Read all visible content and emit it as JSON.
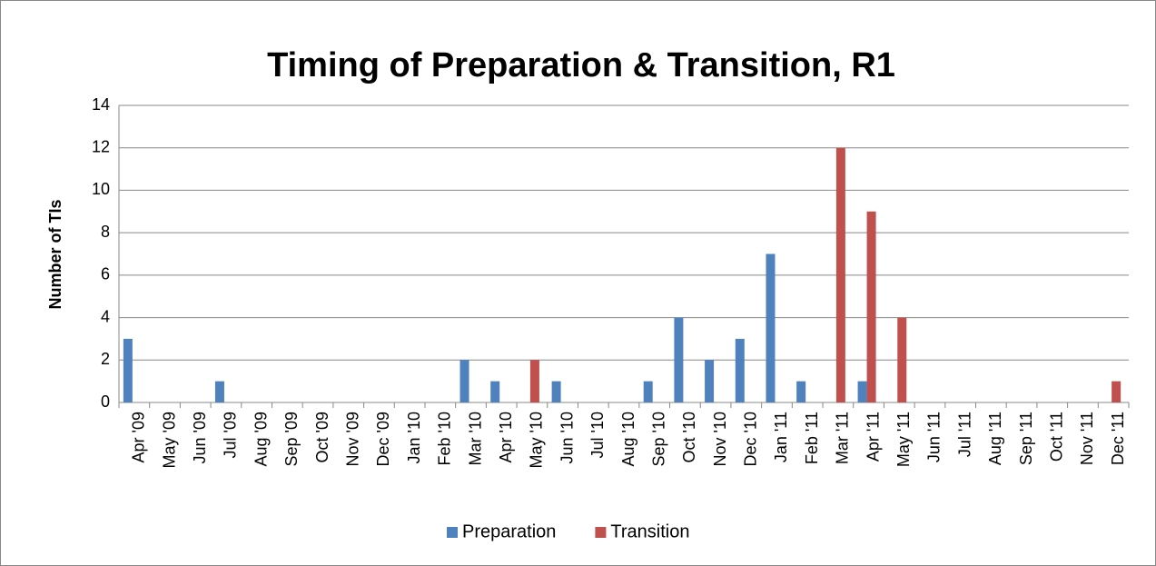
{
  "chart_data": {
    "type": "bar",
    "title": "Timing of Preparation & Transition, R1",
    "y_label": "Number of TIs",
    "categories": [
      "Apr '09",
      "May '09",
      "Jun '09",
      "Jul '09",
      "Aug '09",
      "Sep '09",
      "Oct '09",
      "Nov '09",
      "Dec '09",
      "Jan '10",
      "Feb '10",
      "Mar '10",
      "Apr '10",
      "May '10",
      "Jun '10",
      "Jul '10",
      "Aug '10",
      "Sep '10",
      "Oct '10",
      "Nov '10",
      "Dec '10",
      "Jan '11",
      "Feb '11",
      "Mar '11",
      "Apr '11",
      "May '11",
      "Jun '11",
      "Jul '11",
      "Aug '11",
      "Sep '11",
      "Oct '11",
      "Nov '11",
      "Dec '11"
    ],
    "series": [
      {
        "name": "Preparation",
        "color": "#4f81bd",
        "values": [
          3,
          0,
          0,
          1,
          0,
          0,
          0,
          0,
          0,
          0,
          0,
          2,
          1,
          0,
          1,
          0,
          0,
          1,
          4,
          2,
          3,
          7,
          1,
          0,
          1,
          0,
          0,
          0,
          0,
          0,
          0,
          0,
          0
        ]
      },
      {
        "name": "Transition",
        "color": "#c0504d",
        "values": [
          0,
          0,
          0,
          0,
          0,
          0,
          0,
          0,
          0,
          0,
          0,
          0,
          0,
          2,
          0,
          0,
          0,
          0,
          0,
          0,
          0,
          0,
          0,
          12,
          9,
          4,
          0,
          0,
          0,
          0,
          0,
          0,
          1
        ]
      }
    ],
    "ylim": [
      0,
      14
    ],
    "yticks": [
      0,
      2,
      4,
      6,
      8,
      10,
      12,
      14
    ],
    "grid": true,
    "legend": "bottom"
  }
}
